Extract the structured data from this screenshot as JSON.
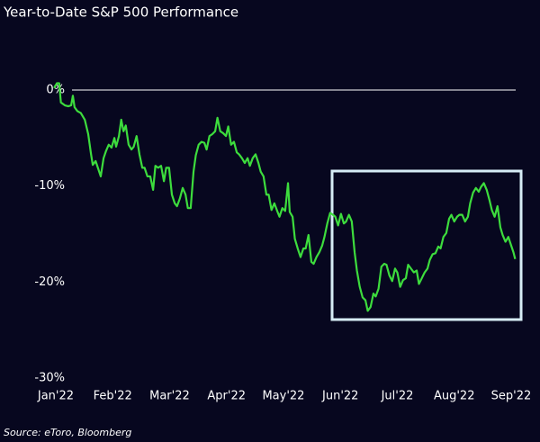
{
  "chart_data": {
    "type": "line",
    "title": "Year-to-Date S&P 500 Performance",
    "source": "Source: eToro, Bloomberg",
    "x": [
      -0.03,
      0.02,
      0.06,
      0.09,
      0.16,
      0.22,
      0.27,
      0.3,
      0.33,
      0.38,
      0.44,
      0.51,
      0.57,
      0.62,
      0.65,
      0.7,
      0.74,
      0.79,
      0.84,
      0.88,
      0.93,
      0.98,
      1.03,
      1.06,
      1.11,
      1.15,
      1.19,
      1.23,
      1.28,
      1.33,
      1.37,
      1.42,
      1.47,
      1.52,
      1.56,
      1.61,
      1.66,
      1.71,
      1.75,
      1.8,
      1.85,
      1.9,
      1.94,
      1.99,
      2.04,
      2.09,
      2.13,
      2.18,
      2.23,
      2.28,
      2.32,
      2.37,
      2.42,
      2.46,
      2.51,
      2.56,
      2.61,
      2.65,
      2.7,
      2.75,
      2.8,
      2.84,
      2.89,
      2.94,
      2.99,
      3.03,
      3.08,
      3.13,
      3.18,
      3.22,
      3.27,
      3.32,
      3.37,
      3.41,
      3.46,
      3.51,
      3.56,
      3.6,
      3.65,
      3.7,
      3.74,
      3.79,
      3.84,
      3.89,
      3.93,
      3.98,
      4.03,
      4.08,
      4.11,
      4.16,
      4.2,
      4.25,
      4.3,
      4.35,
      4.39,
      4.44,
      4.49,
      4.53,
      4.58,
      4.63,
      4.68,
      4.72,
      4.77,
      4.82,
      4.87,
      4.91,
      4.96,
      5.01,
      5.06,
      5.1,
      5.15,
      5.2,
      5.25,
      5.29,
      5.34,
      5.39,
      5.44,
      5.48,
      5.53,
      5.58,
      5.62,
      5.67,
      5.72,
      5.77,
      5.81,
      5.86,
      5.91,
      5.96,
      6.0,
      6.05,
      6.1,
      6.15,
      6.19,
      6.24,
      6.29,
      6.34,
      6.38,
      6.43,
      6.48,
      6.53,
      6.57,
      6.62,
      6.67,
      6.72,
      6.76,
      6.81,
      6.86,
      6.91,
      6.95,
      7.0,
      7.05,
      7.09,
      7.14,
      7.19,
      7.24,
      7.28,
      7.33,
      7.38,
      7.43,
      7.47,
      7.52,
      7.57,
      7.62,
      7.66,
      7.71,
      7.76,
      7.81,
      7.85,
      7.9,
      7.95,
      8.0,
      8.04,
      8.07
    ],
    "series": [
      {
        "color": "#3ddc3d",
        "values": [
          0.2,
          0.7,
          0.7,
          -1.3,
          -1.6,
          -1.7,
          -1.6,
          -0.6,
          -1.8,
          -2.2,
          -2.4,
          -3.1,
          -4.6,
          -6.7,
          -7.8,
          -7.4,
          -8.1,
          -9.0,
          -7.1,
          -6.4,
          -5.7,
          -6.0,
          -5.0,
          -5.9,
          -4.8,
          -3.1,
          -4.3,
          -3.7,
          -5.7,
          -6.2,
          -5.9,
          -4.8,
          -6.7,
          -8.1,
          -8.1,
          -9.0,
          -9.0,
          -10.4,
          -7.9,
          -8.1,
          -7.9,
          -9.5,
          -8.1,
          -8.1,
          -10.9,
          -11.8,
          -12.1,
          -11.3,
          -10.2,
          -10.9,
          -12.3,
          -12.3,
          -8.5,
          -6.8,
          -5.7,
          -5.4,
          -5.5,
          -6.2,
          -4.8,
          -4.6,
          -4.3,
          -2.9,
          -4.3,
          -4.5,
          -4.8,
          -3.8,
          -5.7,
          -5.4,
          -6.5,
          -6.7,
          -7.1,
          -7.6,
          -7.1,
          -7.9,
          -7.1,
          -6.7,
          -7.6,
          -8.5,
          -9.0,
          -10.9,
          -10.9,
          -12.5,
          -11.8,
          -12.6,
          -13.2,
          -12.3,
          -12.6,
          -9.7,
          -12.7,
          -13.2,
          -15.5,
          -16.5,
          -17.4,
          -16.5,
          -16.5,
          -15.1,
          -17.9,
          -18.1,
          -17.4,
          -16.9,
          -16.2,
          -15.3,
          -13.9,
          -12.8,
          -13.0,
          -13.2,
          -14.1,
          -12.9,
          -13.9,
          -13.7,
          -13.0,
          -13.7,
          -16.9,
          -18.8,
          -20.5,
          -21.6,
          -21.9,
          -23.0,
          -22.6,
          -21.2,
          -21.5,
          -20.7,
          -18.4,
          -18.1,
          -18.2,
          -19.3,
          -19.9,
          -18.6,
          -19.0,
          -20.5,
          -19.8,
          -19.6,
          -18.2,
          -18.6,
          -19.0,
          -18.8,
          -20.2,
          -19.6,
          -19.0,
          -18.6,
          -17.7,
          -17.1,
          -17.0,
          -16.3,
          -16.5,
          -15.3,
          -14.9,
          -13.4,
          -13.0,
          -13.7,
          -13.2,
          -13.0,
          -13.0,
          -13.7,
          -13.2,
          -11.8,
          -10.7,
          -10.2,
          -10.6,
          -10.1,
          -9.7,
          -10.4,
          -11.5,
          -12.5,
          -13.2,
          -12.1,
          -14.3,
          -15.1,
          -15.8,
          -15.3,
          -16.2,
          -16.9,
          -17.6
        ]
      }
    ],
    "xlim": [
      -0.05,
      8.1
    ],
    "xticks": [
      {
        "value": 0,
        "label": "Jan'22"
      },
      {
        "value": 1,
        "label": "Feb'22"
      },
      {
        "value": 2,
        "label": "Mar'22"
      },
      {
        "value": 3,
        "label": "Apr'22"
      },
      {
        "value": 4,
        "label": "May'22"
      },
      {
        "value": 5,
        "label": "Jun'22"
      },
      {
        "value": 6,
        "label": "Jul'22"
      },
      {
        "value": 7,
        "label": "Aug'22"
      },
      {
        "value": 8,
        "label": "Sep'22"
      }
    ],
    "ylim": [
      -30,
      5
    ],
    "yticks": [
      {
        "value": -30,
        "label": "-30%"
      },
      {
        "value": -20,
        "label": "-20%"
      },
      {
        "value": -10,
        "label": "-10%"
      },
      {
        "value": 0,
        "label": "0%"
      }
    ],
    "zero_line": true,
    "grid": false
  }
}
